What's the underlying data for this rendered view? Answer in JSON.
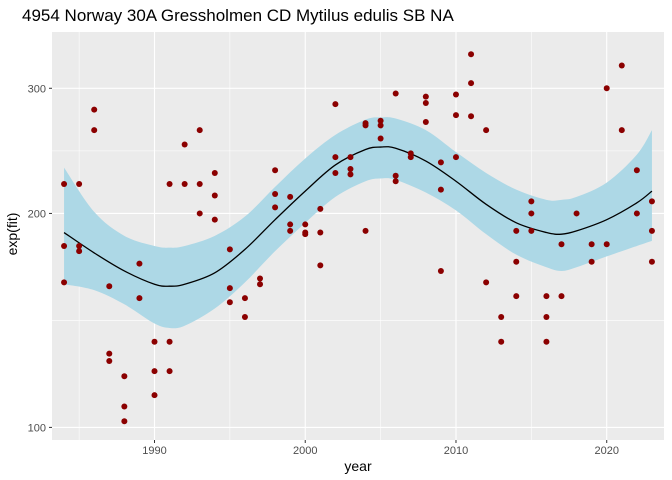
{
  "chart_data": {
    "type": "scatter",
    "title": "4954 Norway 30A Gressholmen CD Mytilus edulis SB NA",
    "xlabel": "year",
    "ylabel": "exp(fit)",
    "xlim": [
      1983.2,
      2023.8
    ],
    "ylim": [
      96,
      360
    ],
    "y_scale": "log",
    "x_ticks": [
      1990,
      2000,
      2010,
      2020
    ],
    "y_ticks": [
      100,
      200,
      300
    ],
    "grid": true,
    "colors": {
      "panel": "#ebebeb",
      "grid": "#ffffff",
      "points": "#8b0000",
      "band": "#add8e6",
      "fit_line": "#000000"
    },
    "series": [
      {
        "kind": "points",
        "points": [
          [
            1984,
            220
          ],
          [
            1984,
            180
          ],
          [
            1984,
            160
          ],
          [
            1985,
            220
          ],
          [
            1985,
            180
          ],
          [
            1985,
            177
          ],
          [
            1986,
            280
          ],
          [
            1986,
            262
          ],
          [
            1987,
            158
          ],
          [
            1987,
            127
          ],
          [
            1987,
            124
          ],
          [
            1988,
            118
          ],
          [
            1988,
            107
          ],
          [
            1988,
            102
          ],
          [
            1989,
            170
          ],
          [
            1989,
            152
          ],
          [
            1990,
            132
          ],
          [
            1990,
            120
          ],
          [
            1990,
            111
          ],
          [
            1991,
            220
          ],
          [
            1991,
            132
          ],
          [
            1991,
            120
          ],
          [
            1992,
            250
          ],
          [
            1992,
            220
          ],
          [
            1993,
            262
          ],
          [
            1993,
            220
          ],
          [
            1993,
            200
          ],
          [
            1994,
            228
          ],
          [
            1994,
            212
          ],
          [
            1994,
            196
          ],
          [
            1995,
            178
          ],
          [
            1995,
            157
          ],
          [
            1995,
            150
          ],
          [
            1996,
            152
          ],
          [
            1996,
            143
          ],
          [
            1997,
            162
          ],
          [
            1997,
            159
          ],
          [
            1998,
            230
          ],
          [
            1998,
            213
          ],
          [
            1998,
            204
          ],
          [
            1999,
            211
          ],
          [
            1999,
            193
          ],
          [
            1999,
            189
          ],
          [
            2000,
            193
          ],
          [
            2000,
            188
          ],
          [
            2000,
            187
          ],
          [
            2001,
            203
          ],
          [
            2001,
            188
          ],
          [
            2001,
            169
          ],
          [
            2002,
            285
          ],
          [
            2002,
            240
          ],
          [
            2002,
            228
          ],
          [
            2003,
            240
          ],
          [
            2003,
            231
          ],
          [
            2003,
            227
          ],
          [
            2004,
            268
          ],
          [
            2004,
            266
          ],
          [
            2004,
            189
          ],
          [
            2005,
            270
          ],
          [
            2005,
            266
          ],
          [
            2005,
            255
          ],
          [
            2006,
            295
          ],
          [
            2006,
            226
          ],
          [
            2006,
            222
          ],
          [
            2007,
            243
          ],
          [
            2007,
            240
          ],
          [
            2008,
            292
          ],
          [
            2008,
            286
          ],
          [
            2008,
            269
          ],
          [
            2009,
            236
          ],
          [
            2009,
            216
          ],
          [
            2009,
            166
          ],
          [
            2010,
            294
          ],
          [
            2010,
            275
          ],
          [
            2010,
            240
          ],
          [
            2011,
            335
          ],
          [
            2011,
            305
          ],
          [
            2011,
            274
          ],
          [
            2012,
            262
          ],
          [
            2012,
            160
          ],
          [
            2013,
            143
          ],
          [
            2013,
            132
          ],
          [
            2014,
            189
          ],
          [
            2014,
            171
          ],
          [
            2014,
            153
          ],
          [
            2015,
            208
          ],
          [
            2015,
            200
          ],
          [
            2015,
            189
          ],
          [
            2016,
            153
          ],
          [
            2016,
            143
          ],
          [
            2016,
            132
          ],
          [
            2017,
            181
          ],
          [
            2017,
            153
          ],
          [
            2018,
            200
          ],
          [
            2019,
            181
          ],
          [
            2019,
            171
          ],
          [
            2020,
            300
          ],
          [
            2020,
            181
          ],
          [
            2021,
            323
          ],
          [
            2021,
            262
          ],
          [
            2022,
            230
          ],
          [
            2022,
            200
          ],
          [
            2023,
            208
          ],
          [
            2023,
            189
          ],
          [
            2023,
            171
          ]
        ]
      },
      {
        "kind": "fit",
        "x": [
          1984,
          1986,
          1988,
          1990,
          1991,
          1992,
          1994,
          1996,
          1998,
          2000,
          2002,
          2004,
          2005,
          2006,
          2008,
          2010,
          2012,
          2014,
          2016,
          2017,
          2018,
          2020,
          2022,
          2023
        ],
        "fit": [
          188,
          176,
          166,
          159,
          158,
          159,
          165,
          178,
          196,
          215,
          234,
          246,
          248,
          247,
          237,
          222,
          206,
          194,
          188,
          187,
          189,
          196,
          207,
          215
        ],
        "lower": [
          159,
          156,
          149,
          140,
          138,
          139,
          147,
          160,
          177,
          194,
          211,
          222,
          224,
          223,
          214,
          202,
          187,
          175,
          168,
          166,
          168,
          174,
          180,
          183
        ],
        "upper": [
          232,
          201,
          186,
          180,
          179,
          180,
          186,
          198,
          218,
          239,
          258,
          271,
          273,
          272,
          262,
          244,
          228,
          216,
          209,
          209,
          211,
          221,
          242,
          262
        ]
      }
    ]
  }
}
